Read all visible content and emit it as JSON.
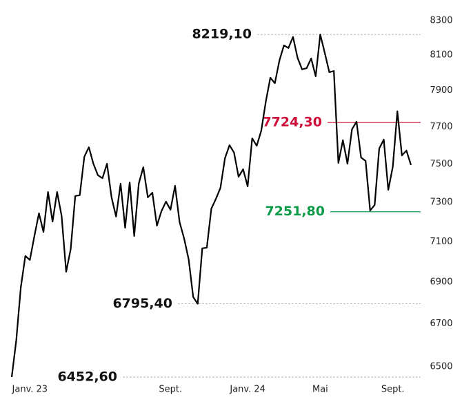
{
  "chart_data": {
    "type": "line",
    "log_y": true,
    "color": "#000000",
    "categories": [
      null,
      null,
      null,
      null,
      "Janv. 23",
      null,
      null,
      null,
      null,
      null,
      null,
      null,
      null,
      null,
      null,
      null,
      null,
      null,
      null,
      null,
      null,
      null,
      null,
      null,
      null,
      null,
      null,
      null,
      null,
      null,
      null,
      null,
      null,
      null,
      null,
      "Sept.",
      null,
      null,
      null,
      null,
      null,
      null,
      null,
      null,
      null,
      null,
      null,
      null,
      null,
      null,
      null,
      null,
      "Janv. 24",
      null,
      null,
      null,
      null,
      null,
      null,
      null,
      null,
      null,
      null,
      null,
      null,
      null,
      null,
      null,
      "Mai",
      null,
      null,
      null,
      null,
      null,
      null,
      null,
      null,
      null,
      null,
      null,
      null,
      null,
      null,
      null,
      "Sept.",
      null,
      null,
      null,
      null
    ],
    "values": [
      6452.6,
      6622,
      6874,
      7029,
      7009,
      7129,
      7244,
      7149,
      7354,
      7202,
      7354,
      7230,
      6951,
      7063,
      7333,
      7337,
      7539,
      7590,
      7502,
      7441,
      7426,
      7502,
      7326,
      7227,
      7397,
      7170,
      7404,
      7129,
      7397,
      7484,
      7326,
      7350,
      7181,
      7255,
      7304,
      7262,
      7386,
      7199,
      7116,
      7012,
      6828,
      6795.4,
      7067,
      7070,
      7268,
      7318,
      7375,
      7531,
      7601,
      7561,
      7433,
      7473,
      7383,
      7638,
      7598,
      7679,
      7838,
      7972,
      7941,
      8069,
      8156,
      8141,
      8205,
      8085,
      8019,
      8026,
      8081,
      7980,
      8219.1,
      8113,
      8003,
      8010,
      7506,
      7628,
      7502,
      7687,
      7728,
      7535,
      7517,
      7258,
      7287,
      7583,
      7631,
      7365,
      7487,
      7785,
      7546,
      7572,
      7495
    ],
    "ylim": [
      6440,
      8320
    ],
    "yticks": [
      6500,
      6700,
      6900,
      7100,
      7300,
      7500,
      7700,
      7900,
      8100,
      8300
    ],
    "reference_lines": [
      {
        "value": 8219.1,
        "label": "8219,10",
        "color": "#9a9a9a",
        "style": "dashed",
        "label_color": "#111111"
      },
      {
        "value": 7724.3,
        "label": "7724,30",
        "color": "#d0103a",
        "style": "solid",
        "label_color": "#d0103a"
      },
      {
        "value": 7251.8,
        "label": "7251,80",
        "color": "#0a9a48",
        "style": "solid",
        "label_color": "#0a9a48"
      },
      {
        "value": 6795.4,
        "label": "6795,40",
        "color": "#9a9a9a",
        "style": "dashed",
        "label_color": "#111111"
      },
      {
        "value": 6452.6,
        "label": "6452,60",
        "color": "#9a9a9a",
        "style": "dashed",
        "label_color": "#111111"
      }
    ]
  }
}
